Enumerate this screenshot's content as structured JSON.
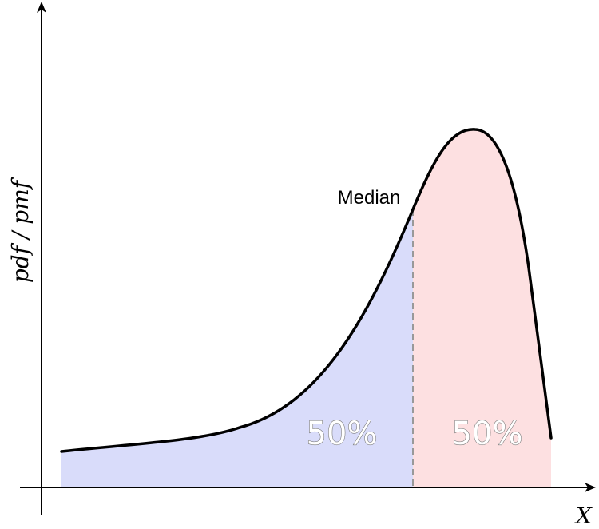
{
  "labels": {
    "median": "Median",
    "left_percent": "50%",
    "right_percent": "50%",
    "y_axis": "pdf / pmf",
    "x_axis": "X"
  },
  "colors": {
    "left_fill": "#d9dcfa",
    "right_fill": "#fde0e1",
    "curve": "#000000",
    "median_line": "#999999"
  }
}
